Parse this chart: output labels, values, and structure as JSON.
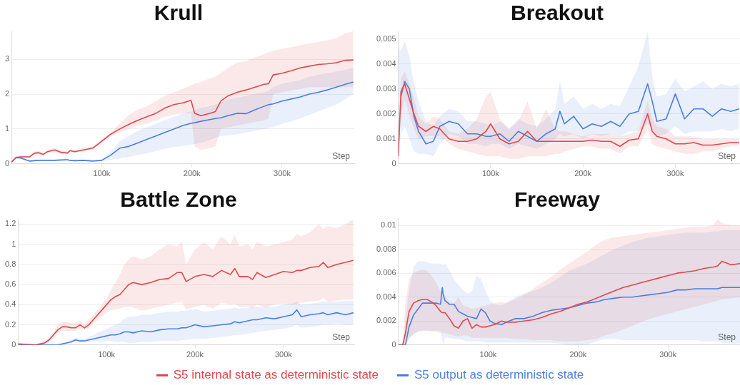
{
  "chart_data": [
    {
      "type": "line",
      "title": "Krull",
      "xlabel": "Step",
      "grid": "y",
      "legend": "bottom",
      "xlim": [
        0,
        380000
      ],
      "xticks": [
        {
          "value": 100000,
          "label": "100k"
        },
        {
          "value": 200000,
          "label": "200k"
        },
        {
          "value": 300000,
          "label": "300k"
        }
      ],
      "ylim": [
        0,
        3.8
      ],
      "yticks": [
        0,
        1,
        2,
        3
      ],
      "x": [
        0,
        5000,
        10000,
        20000,
        25000,
        30000,
        35000,
        40000,
        48000,
        55000,
        62000,
        65000,
        70000,
        80000,
        90000,
        100000,
        110000,
        120000,
        130000,
        140000,
        150000,
        160000,
        170000,
        180000,
        190000,
        199000,
        203000,
        210000,
        220000,
        226000,
        232000,
        240000,
        250000,
        260000,
        270000,
        280000,
        285000,
        290000,
        300000,
        310000,
        320000,
        330000,
        340000,
        350000,
        360000,
        370000,
        379000
      ],
      "series": [
        {
          "name": "S5 internal state as deterministic state",
          "color": "#e0474c",
          "values": [
            0.05,
            0.18,
            0.2,
            0.2,
            0.3,
            0.32,
            0.27,
            0.35,
            0.4,
            0.33,
            0.31,
            0.38,
            0.35,
            0.4,
            0.45,
            0.65,
            0.85,
            1.0,
            1.13,
            1.25,
            1.35,
            1.45,
            1.6,
            1.7,
            1.75,
            1.82,
            1.45,
            1.38,
            1.45,
            1.5,
            1.8,
            1.95,
            2.05,
            2.12,
            2.2,
            2.28,
            2.3,
            2.55,
            2.6,
            2.67,
            2.75,
            2.8,
            2.85,
            2.87,
            2.9,
            2.97,
            2.98
          ],
          "lower": [
            0.03,
            0.15,
            0.17,
            0.17,
            0.25,
            0.27,
            0.23,
            0.3,
            0.34,
            0.28,
            0.27,
            0.33,
            0.31,
            0.36,
            0.4,
            0.6,
            0.8,
            0.9,
            1.0,
            1.1,
            1.15,
            1.25,
            1.35,
            1.4,
            1.45,
            1.45,
            0.5,
            0.4,
            0.45,
            0.5,
            1.0,
            1.05,
            1.1,
            1.15,
            1.2,
            1.25,
            1.3,
            2.0,
            2.05,
            2.1,
            2.15,
            2.2,
            2.2,
            2.2,
            2.2,
            2.2,
            2.2
          ],
          "upper": [
            0.08,
            0.22,
            0.24,
            0.24,
            0.35,
            0.38,
            0.32,
            0.4,
            0.45,
            0.38,
            0.36,
            0.42,
            0.4,
            0.45,
            0.5,
            0.7,
            0.9,
            1.15,
            1.4,
            1.55,
            1.65,
            1.8,
            1.95,
            2.05,
            2.15,
            2.25,
            2.3,
            2.35,
            2.45,
            2.5,
            2.6,
            2.75,
            2.9,
            2.95,
            3.05,
            3.15,
            3.2,
            3.25,
            3.3,
            3.35,
            3.4,
            3.45,
            3.5,
            3.55,
            3.6,
            3.75,
            3.8
          ]
        },
        {
          "name": "S5 output as deterministic state",
          "color": "#4a7fe0",
          "values": [
            0.05,
            0.18,
            0.17,
            0.08,
            0.09,
            0.1,
            0.1,
            0.1,
            0.1,
            0.11,
            0.12,
            0.1,
            0.09,
            0.1,
            0.08,
            0.1,
            0.25,
            0.45,
            0.5,
            0.6,
            0.7,
            0.8,
            0.9,
            1.0,
            1.1,
            1.16,
            1.18,
            1.22,
            1.27,
            1.3,
            1.32,
            1.38,
            1.45,
            1.44,
            1.55,
            1.65,
            1.7,
            1.72,
            1.8,
            1.86,
            1.92,
            2.0,
            2.05,
            2.12,
            2.2,
            2.28,
            2.35
          ],
          "lower": [
            0.03,
            0.15,
            0.14,
            0.06,
            0.07,
            0.08,
            0.08,
            0.08,
            0.08,
            0.09,
            0.1,
            0.08,
            0.07,
            0.08,
            0.06,
            0.08,
            0.12,
            0.15,
            0.2,
            0.25,
            0.3,
            0.37,
            0.43,
            0.48,
            0.52,
            0.55,
            0.57,
            0.6,
            0.68,
            0.75,
            0.8,
            0.82,
            0.85,
            0.9,
            0.95,
            1.0,
            1.03,
            1.06,
            1.15,
            1.22,
            1.3,
            1.4,
            1.5,
            1.6,
            1.7,
            1.85,
            2.0
          ],
          "upper": [
            0.07,
            0.21,
            0.2,
            0.1,
            0.11,
            0.12,
            0.12,
            0.12,
            0.12,
            0.13,
            0.14,
            0.12,
            0.11,
            0.12,
            0.1,
            0.12,
            0.35,
            0.65,
            0.8,
            0.95,
            1.05,
            1.15,
            1.25,
            1.35,
            1.45,
            1.5,
            1.55,
            1.6,
            1.65,
            1.7,
            1.75,
            1.85,
            1.9,
            1.95,
            2.0,
            2.05,
            2.1,
            2.2,
            2.3,
            2.35,
            2.4,
            2.5,
            2.55,
            2.6,
            2.65,
            2.7,
            2.75
          ]
        }
      ]
    },
    {
      "type": "line",
      "title": "Breakout",
      "xlabel": "Step",
      "grid": "y",
      "legend": "bottom",
      "xlim": [
        0,
        370000
      ],
      "xticks": [
        {
          "value": 100000,
          "label": "100k"
        },
        {
          "value": 200000,
          "label": "200k"
        },
        {
          "value": 300000,
          "label": "300k"
        }
      ],
      "ylim": [
        0,
        0.0053
      ],
      "yticks": [
        0,
        0.001,
        0.002,
        0.003,
        0.004,
        0.005
      ],
      "x": [
        0,
        3000,
        7000,
        12000,
        17000,
        22000,
        30000,
        38000,
        45000,
        55000,
        65000,
        75000,
        85000,
        95000,
        100000,
        110000,
        120000,
        130000,
        140000,
        150000,
        160000,
        170000,
        175000,
        180000,
        190000,
        200000,
        210000,
        220000,
        230000,
        240000,
        250000,
        260000,
        270000,
        275000,
        280000,
        290000,
        300000,
        310000,
        320000,
        330000,
        340000,
        350000,
        360000,
        369000
      ],
      "series": [
        {
          "name": "S5 internal state as deterministic state",
          "color": "#e0474c",
          "values": [
            0.0003,
            0.0029,
            0.0032,
            0.0026,
            0.002,
            0.0015,
            0.0013,
            0.0015,
            0.0014,
            0.001,
            0.0009,
            0.0009,
            0.001,
            0.0013,
            0.0016,
            0.001,
            0.0008,
            0.0009,
            0.0013,
            0.0009,
            0.0009,
            0.0009,
            0.0009,
            0.0009,
            0.0009,
            0.0009,
            0.00095,
            0.0009,
            0.0009,
            0.0007,
            0.00095,
            0.001,
            0.002,
            0.0013,
            0.0011,
            0.001,
            0.0008,
            0.0008,
            0.00085,
            0.00075,
            0.00075,
            0.0008,
            0.00085,
            0.00085
          ],
          "lower": [
            0.0001,
            0.002,
            0.0026,
            0.002,
            0.0014,
            0.001,
            0.0011,
            0.0011,
            0.0011,
            0.0008,
            0.0006,
            0.0005,
            0.0004,
            0.0003,
            0.0003,
            0.0003,
            0.0002,
            0.0002,
            0.0003,
            0.0003,
            0.0003,
            0.0004,
            0.0004,
            0.0005,
            0.0006,
            0.0007,
            0.0007,
            0.0006,
            0.0006,
            0.0004,
            0.0007,
            0.0007,
            0.0014,
            0.0008,
            0.0007,
            0.0006,
            0.0005,
            0.0004,
            0.0004,
            0.0005,
            0.0005,
            0.0006,
            0.0007,
            0.0007
          ],
          "upper": [
            0.0006,
            0.0034,
            0.0037,
            0.0032,
            0.0026,
            0.0019,
            0.0016,
            0.0019,
            0.0018,
            0.0013,
            0.0012,
            0.0014,
            0.0018,
            0.0027,
            0.0029,
            0.0018,
            0.0014,
            0.0017,
            0.0025,
            0.0014,
            0.0022,
            0.0014,
            0.0013,
            0.0013,
            0.0012,
            0.0011,
            0.0012,
            0.0012,
            0.0012,
            0.0011,
            0.0012,
            0.0013,
            0.0025,
            0.0018,
            0.0015,
            0.0014,
            0.0011,
            0.0011,
            0.0011,
            0.001,
            0.001,
            0.001,
            0.001,
            0.001
          ]
        },
        {
          "name": "S5 output as deterministic state",
          "color": "#4a7fe0",
          "values": [
            null,
            0.0027,
            0.0033,
            0.003,
            0.0019,
            0.0013,
            0.0008,
            0.0009,
            0.0015,
            0.0017,
            0.0016,
            0.0012,
            0.0012,
            0.0011,
            0.0011,
            0.0012,
            0.0009,
            0.0013,
            0.0011,
            0.0009,
            0.0012,
            0.0014,
            0.0021,
            0.0016,
            0.0019,
            0.0014,
            0.0016,
            0.0015,
            0.0017,
            0.0015,
            0.002,
            0.0021,
            0.0032,
            0.0025,
            0.0017,
            0.0018,
            0.0028,
            0.0018,
            0.0022,
            0.0022,
            0.0019,
            0.0022,
            0.0021,
            0.0022
          ],
          "lower": [
            0.0001,
            0.0012,
            0.0015,
            0.001,
            0.0005,
            0.0004,
            0.0004,
            0.0003,
            0.0008,
            0.0012,
            0.0011,
            0.0008,
            0.0008,
            0.0007,
            0.0008,
            0.0008,
            0.0006,
            0.0008,
            0.0007,
            0.0006,
            0.0008,
            0.001,
            0.0012,
            0.0011,
            0.0012,
            0.001,
            0.0012,
            0.0011,
            0.0012,
            0.0011,
            0.0013,
            0.0013,
            0.0016,
            0.0014,
            0.0011,
            0.0012,
            0.0015,
            0.0012,
            0.0013,
            0.0013,
            0.0013,
            0.0014,
            0.0013,
            0.0014
          ],
          "upper": [
            0.0047,
            0.0045,
            0.0049,
            0.0043,
            0.0032,
            0.0025,
            0.0017,
            0.0015,
            0.0019,
            0.0022,
            0.0021,
            0.0017,
            0.0017,
            0.0016,
            0.0015,
            0.0017,
            0.0014,
            0.0018,
            0.0016,
            0.0015,
            0.0018,
            0.0022,
            0.0033,
            0.0024,
            0.0027,
            0.0022,
            0.0024,
            0.0022,
            0.0024,
            0.0023,
            0.0031,
            0.0039,
            0.0053,
            0.0035,
            0.0027,
            0.0028,
            0.0034,
            0.0029,
            0.0031,
            0.0033,
            0.003,
            0.0032,
            0.0031,
            0.0032
          ]
        }
      ]
    },
    {
      "type": "line",
      "title": "Battle Zone",
      "xlabel": "Step",
      "grid": "y",
      "legend": "bottom",
      "xlim": [
        0,
        380000
      ],
      "xticks": [
        {
          "value": 100000,
          "label": "100k"
        },
        {
          "value": 200000,
          "label": "200k"
        },
        {
          "value": 300000,
          "label": "300k"
        }
      ],
      "ylim": [
        0,
        1.26
      ],
      "yticks": [
        0,
        0.2,
        0.4,
        0.6,
        0.8,
        1,
        1.2
      ],
      "x": [
        0,
        10000,
        20000,
        25000,
        30000,
        35000,
        40000,
        45000,
        50000,
        55000,
        60000,
        65000,
        70000,
        75000,
        80000,
        90000,
        100000,
        105000,
        110000,
        115000,
        120000,
        125000,
        130000,
        140000,
        150000,
        160000,
        170000,
        180000,
        185000,
        190000,
        200000,
        210000,
        220000,
        230000,
        240000,
        245000,
        250000,
        260000,
        265000,
        270000,
        280000,
        290000,
        300000,
        310000,
        315000,
        320000,
        330000,
        340000,
        345000,
        350000,
        360000,
        370000,
        379000
      ],
      "series": [
        {
          "name": "S5 internal state as deterministic state",
          "color": "#e0474c",
          "values": [
            0,
            0,
            0,
            0.01,
            0.02,
            0.05,
            0.1,
            0.15,
            0.18,
            0.18,
            0.17,
            0.17,
            0.2,
            0.17,
            0.2,
            0.3,
            0.4,
            0.45,
            0.48,
            0.5,
            0.55,
            0.6,
            0.62,
            0.6,
            0.62,
            0.65,
            0.66,
            0.72,
            0.72,
            0.63,
            0.68,
            0.7,
            0.68,
            0.74,
            0.7,
            0.76,
            0.68,
            0.68,
            0.65,
            0.72,
            0.67,
            0.7,
            0.73,
            0.72,
            0.74,
            0.74,
            0.77,
            0.78,
            0.82,
            0.77,
            0.8,
            0.82,
            0.84
          ],
          "lower": [
            0,
            0,
            0,
            0,
            0.01,
            0.03,
            0.07,
            0.12,
            0.14,
            0.14,
            0.14,
            0.14,
            0.16,
            0.15,
            0.17,
            0.25,
            0.32,
            0.35,
            0.35,
            0.36,
            0.38,
            0.38,
            0.37,
            0.34,
            0.36,
            0.38,
            0.4,
            0.42,
            0.43,
            0.35,
            0.38,
            0.4,
            0.36,
            0.42,
            0.4,
            0.41,
            0.38,
            0.38,
            0.36,
            0.4,
            0.37,
            0.4,
            0.41,
            0.4,
            0.41,
            0.42,
            0.43,
            0.44,
            0.47,
            0.42,
            0.44,
            0.45,
            0.45
          ],
          "upper": [
            0.01,
            0.01,
            0.01,
            0.02,
            0.04,
            0.08,
            0.13,
            0.2,
            0.23,
            0.23,
            0.22,
            0.22,
            0.24,
            0.21,
            0.25,
            0.35,
            0.46,
            0.55,
            0.62,
            0.7,
            0.8,
            0.85,
            0.88,
            0.85,
            0.88,
            0.95,
            1.0,
            0.98,
            1.03,
            0.8,
            0.95,
            1.02,
            0.95,
            1.08,
            1.0,
            1.1,
            0.98,
            1.0,
            0.95,
            1.02,
            0.98,
            1.0,
            1.02,
            1.05,
            1.1,
            1.08,
            1.12,
            1.2,
            1.15,
            1.18,
            1.16,
            1.2,
            1.25
          ]
        },
        {
          "name": "S5 output as deterministic state",
          "color": "#4a7fe0",
          "values": [
            0.01,
            0.005,
            0,
            0,
            0,
            0,
            0,
            0,
            0.01,
            0.02,
            0.03,
            0.05,
            0.04,
            0.04,
            0.05,
            0.07,
            0.09,
            0.1,
            0.1,
            0.11,
            0.13,
            0.13,
            0.12,
            0.14,
            0.13,
            0.15,
            0.16,
            0.16,
            0.17,
            0.17,
            0.2,
            0.18,
            0.19,
            0.2,
            0.21,
            0.23,
            0.22,
            0.24,
            0.25,
            0.25,
            0.27,
            0.26,
            0.28,
            0.3,
            0.35,
            0.28,
            0.3,
            0.31,
            0.32,
            0.3,
            0.32,
            0.3,
            0.32
          ],
          "lower": [
            0.005,
            0,
            0,
            0,
            0,
            0,
            0,
            0,
            0.005,
            0.01,
            0.02,
            0.03,
            0.03,
            0.03,
            0.03,
            0.03,
            0.04,
            0.04,
            0.03,
            0.03,
            0.03,
            0.02,
            0.02,
            0.03,
            0.03,
            0.04,
            0.04,
            0.04,
            0.05,
            0.05,
            0.06,
            0.06,
            0.07,
            0.08,
            0.09,
            0.1,
            0.1,
            0.11,
            0.12,
            0.13,
            0.14,
            0.15,
            0.16,
            0.18,
            0.2,
            0.17,
            0.18,
            0.19,
            0.2,
            0.2,
            0.21,
            0.2,
            0.2
          ],
          "upper": [
            0.015,
            0.01,
            0.005,
            0.005,
            0.005,
            0.005,
            0.005,
            0.005,
            0.015,
            0.03,
            0.05,
            0.07,
            0.06,
            0.06,
            0.08,
            0.12,
            0.16,
            0.18,
            0.2,
            0.22,
            0.26,
            0.28,
            0.28,
            0.3,
            0.3,
            0.32,
            0.33,
            0.33,
            0.34,
            0.34,
            0.36,
            0.33,
            0.34,
            0.35,
            0.36,
            0.37,
            0.36,
            0.37,
            0.37,
            0.38,
            0.38,
            0.38,
            0.4,
            0.41,
            0.43,
            0.4,
            0.41,
            0.42,
            0.43,
            0.42,
            0.43,
            0.44,
            0.44
          ]
        }
      ]
    },
    {
      "type": "line",
      "title": "Freeway",
      "xlabel": "Step",
      "grid": "y",
      "legend": "bottom",
      "xlim": [
        0,
        380000
      ],
      "xticks": [
        {
          "value": 100000,
          "label": "100k"
        },
        {
          "value": 200000,
          "label": "200k"
        },
        {
          "value": 300000,
          "label": "300k"
        }
      ],
      "ylim": [
        0,
        0.0106
      ],
      "yticks": [
        0,
        0.002,
        0.004,
        0.006,
        0.008,
        0.01
      ],
      "x": [
        0,
        5000,
        8000,
        12000,
        17000,
        22000,
        27000,
        32000,
        37000,
        42000,
        47000,
        49000,
        50000,
        52000,
        57000,
        62000,
        67000,
        72000,
        77000,
        82000,
        87000,
        92000,
        97000,
        102000,
        107000,
        115000,
        120000,
        130000,
        140000,
        150000,
        160000,
        170000,
        180000,
        190000,
        200000,
        210000,
        220000,
        230000,
        240000,
        250000,
        260000,
        270000,
        280000,
        290000,
        300000,
        310000,
        320000,
        330000,
        340000,
        350000,
        355000,
        360000,
        370000,
        380000
      ],
      "series": [
        {
          "name": "S5 internal state as deterministic state",
          "color": "#e0474c",
          "values": [
            0,
            0,
            0.001,
            0.0028,
            0.0035,
            0.0037,
            0.0038,
            0.0038,
            0.0036,
            0.0033,
            0.0028,
            0.0027,
            0.0027,
            0.0027,
            0.0022,
            0.0016,
            0.0014,
            0.002,
            0.0022,
            0.0014,
            0.0017,
            0.0015,
            0.0015,
            0.0016,
            0.0017,
            0.002,
            0.0019,
            0.0019,
            0.002,
            0.0021,
            0.0023,
            0.0026,
            0.0028,
            0.0031,
            0.0034,
            0.0036,
            0.0039,
            0.0042,
            0.0045,
            0.0048,
            0.005,
            0.0052,
            0.0054,
            0.0056,
            0.0058,
            0.006,
            0.0061,
            0.0062,
            0.0064,
            0.0065,
            0.0066,
            0.007,
            0.0067,
            0.0068
          ],
          "lower": [
            0,
            0,
            0,
            0.0005,
            0.0009,
            0.0011,
            0.0012,
            0.0012,
            0.0011,
            0.0011,
            0.001,
            0.001,
            0.001,
            0.001,
            0.0009,
            0.0008,
            0.0007,
            0.0008,
            0.0008,
            0.0006,
            0.0006,
            0.0006,
            0.0006,
            0.0006,
            0.0006,
            0.0006,
            0.0006,
            0.0005,
            0.0005,
            0.0004,
            0.0004,
            0.0004,
            0.0003,
            0.0003,
            0.0003,
            0.0004,
            0.0005,
            0.0008,
            0.001,
            0.0013,
            0.0016,
            0.0019,
            0.0022,
            0.0024,
            0.0026,
            0.0028,
            0.003,
            0.0032,
            0.0034,
            0.0036,
            0.0037,
            0.0038,
            0.0039,
            0.004
          ],
          "upper": [
            0,
            0,
            0.0035,
            0.0055,
            0.006,
            0.0062,
            0.0063,
            0.0062,
            0.0058,
            0.0052,
            0.0045,
            0.0042,
            0.0042,
            0.0041,
            0.0036,
            0.0035,
            0.004,
            0.0033,
            0.0032,
            0.003,
            0.0031,
            0.0032,
            0.0033,
            0.0034,
            0.0035,
            0.0036,
            0.0035,
            0.0038,
            0.0042,
            0.0047,
            0.0052,
            0.0057,
            0.0063,
            0.0068,
            0.0073,
            0.0078,
            0.0084,
            0.0088,
            0.009,
            0.0091,
            0.0092,
            0.0093,
            0.0094,
            0.0095,
            0.0096,
            0.0097,
            0.0098,
            0.0099,
            0.0099,
            0.01,
            0.0105,
            0.0102,
            0.01,
            0.01
          ]
        },
        {
          "name": "S5 output as deterministic state",
          "color": "#4a7fe0",
          "values": [
            0,
            0,
            0,
            0.0015,
            0.0025,
            0.003,
            0.0035,
            0.0035,
            0.0035,
            0.0035,
            0.0034,
            0.0048,
            0.0042,
            0.0037,
            0.0034,
            0.0034,
            0.0028,
            0.0026,
            0.0024,
            0.0023,
            0.0022,
            0.003,
            0.0027,
            0.002,
            0.0018,
            0.0017,
            0.0019,
            0.0022,
            0.0022,
            0.0024,
            0.0027,
            0.0029,
            0.003,
            0.0031,
            0.0033,
            0.0035,
            0.0036,
            0.0038,
            0.0039,
            0.004,
            0.004,
            0.0041,
            0.0042,
            0.0043,
            0.0044,
            0.0046,
            0.0046,
            0.0047,
            0.0047,
            0.0047,
            0.0047,
            0.0048,
            0.0048,
            0.0048
          ],
          "lower": [
            0,
            0,
            0,
            0.0006,
            0.0009,
            0.0011,
            0.0012,
            0.0012,
            0.0012,
            0.0012,
            0.0012,
            0.0003,
            0,
            0.0006,
            0.0006,
            0.0005,
            0.0005,
            0.0004,
            0.0003,
            0.0003,
            0.0003,
            0.0003,
            0.0002,
            0.0002,
            0.0002,
            0.0002,
            0.0002,
            0.0002,
            0.0002,
            0.0002,
            0.0002,
            0.0002,
            0.0001,
            0,
            0,
            0,
            0.0003,
            0.0005,
            0.0005,
            0.0004,
            0.0004,
            0.0004,
            0.0004,
            0.0004,
            0.0004,
            0.0004,
            0.0004,
            0.0004,
            0.0003,
            0.0003,
            0.0003,
            0.0002,
            0.0001,
            0.0001
          ],
          "upper": [
            0,
            0,
            0.002,
            0.0045,
            0.0065,
            0.007,
            0.007,
            0.0069,
            0.0068,
            0.0068,
            0.0068,
            0.0067,
            0.0067,
            0.0068,
            0.0062,
            0.0055,
            0.005,
            0.0046,
            0.0043,
            0.0045,
            0.0058,
            0.0055,
            0.0045,
            0.0037,
            0.0034,
            0.0033,
            0.0035,
            0.004,
            0.0043,
            0.0045,
            0.0048,
            0.0052,
            0.0057,
            0.0062,
            0.0065,
            0.0068,
            0.0072,
            0.0076,
            0.008,
            0.0083,
            0.0086,
            0.0088,
            0.009,
            0.0091,
            0.0092,
            0.0093,
            0.0094,
            0.0094,
            0.0094,
            0.0095,
            0.0095,
            0.0096,
            0.0096,
            0.0096
          ]
        }
      ]
    }
  ]
}
